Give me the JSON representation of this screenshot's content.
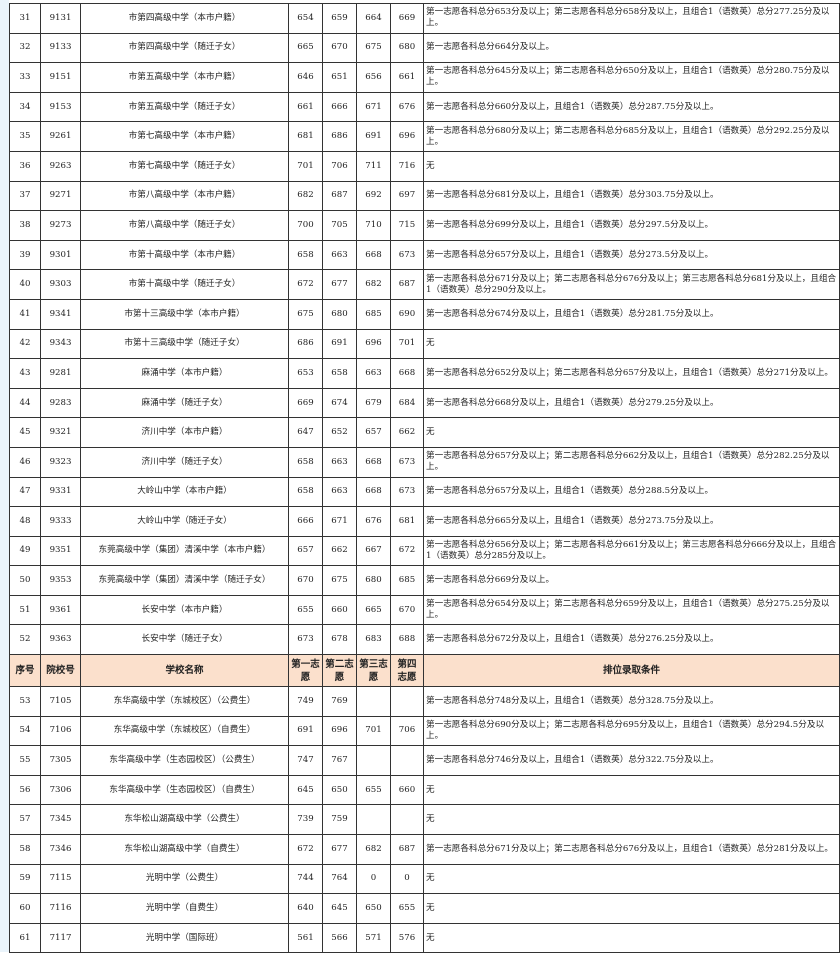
{
  "header": {
    "seq": "序号",
    "code": "院校号",
    "name": "学校名称",
    "v1": "第一志愿",
    "v2": "第二志愿",
    "v3": "第三志愿",
    "v4": "第四志愿",
    "cond": "排位录取条件"
  },
  "colors": {
    "header_bg": "#fbe0cc",
    "border": "#333333"
  },
  "rows_a": [
    [
      "31",
      "9131",
      "市第四高级中学（本市户籍）",
      "654",
      "659",
      "664",
      "669",
      "第一志愿各科总分653分及以上；第二志愿各科总分658分及以上，且组合1（语数英）总分277.25分及以上。"
    ],
    [
      "32",
      "9133",
      "市第四高级中学（随迁子女）",
      "665",
      "670",
      "675",
      "680",
      "第一志愿各科总分664分及以上。"
    ],
    [
      "33",
      "9151",
      "市第五高级中学（本市户籍）",
      "646",
      "651",
      "656",
      "661",
      "第一志愿各科总分645分及以上；第二志愿各科总分650分及以上，且组合1（语数英）总分280.75分及以上。"
    ],
    [
      "34",
      "9153",
      "市第五高级中学（随迁子女）",
      "661",
      "666",
      "671",
      "676",
      "第一志愿各科总分660分及以上，且组合1（语数英）总分287.75分及以上。"
    ],
    [
      "35",
      "9261",
      "市第七高级中学（本市户籍）",
      "681",
      "686",
      "691",
      "696",
      "第一志愿各科总分680分及以上；第二志愿各科总分685分及以上，且组合1（语数英）总分292.25分及以上。"
    ],
    [
      "36",
      "9263",
      "市第七高级中学（随迁子女）",
      "701",
      "706",
      "711",
      "716",
      "无"
    ],
    [
      "37",
      "9271",
      "市第八高级中学（本市户籍）",
      "682",
      "687",
      "692",
      "697",
      "第一志愿各科总分681分及以上，且组合1（语数英）总分303.75分及以上。"
    ],
    [
      "38",
      "9273",
      "市第八高级中学（随迁子女）",
      "700",
      "705",
      "710",
      "715",
      "第一志愿各科总分699分及以上，且组合1（语数英）总分297.5分及以上。"
    ],
    [
      "39",
      "9301",
      "市第十高级中学（本市户籍）",
      "658",
      "663",
      "668",
      "673",
      "第一志愿各科总分657分及以上，且组合1（语数英）总分273.5分及以上。"
    ],
    [
      "40",
      "9303",
      "市第十高级中学（随迁子女）",
      "672",
      "677",
      "682",
      "687",
      "第一志愿各科总分671分及以上；第二志愿各科总分676分及以上；第三志愿各科总分681分及以上，且组合1（语数英）总分290分及以上。"
    ],
    [
      "41",
      "9341",
      "市第十三高级中学（本市户籍）",
      "675",
      "680",
      "685",
      "690",
      "第一志愿各科总分674分及以上，且组合1（语数英）总分281.75分及以上。"
    ],
    [
      "42",
      "9343",
      "市第十三高级中学（随迁子女）",
      "686",
      "691",
      "696",
      "701",
      "无"
    ],
    [
      "43",
      "9281",
      "麻涌中学（本市户籍）",
      "653",
      "658",
      "663",
      "668",
      "第一志愿各科总分652分及以上；第二志愿各科总分657分及以上，且组合1（语数英）总分271分及以上。"
    ],
    [
      "44",
      "9283",
      "麻涌中学（随迁子女）",
      "669",
      "674",
      "679",
      "684",
      "第一志愿各科总分668分及以上，且组合1（语数英）总分279.25分及以上。"
    ],
    [
      "45",
      "9321",
      "济川中学（本市户籍）",
      "647",
      "652",
      "657",
      "662",
      "无"
    ],
    [
      "46",
      "9323",
      "济川中学（随迁子女）",
      "658",
      "663",
      "668",
      "673",
      "第一志愿各科总分657分及以上；第二志愿各科总分662分及以上，且组合1（语数英）总分282.25分及以上。"
    ],
    [
      "47",
      "9331",
      "大岭山中学（本市户籍）",
      "658",
      "663",
      "668",
      "673",
      "第一志愿各科总分657分及以上，且组合1（语数英）总分288.5分及以上。"
    ],
    [
      "48",
      "9333",
      "大岭山中学（随迁子女）",
      "666",
      "671",
      "676",
      "681",
      "第一志愿各科总分665分及以上，且组合1（语数英）总分273.75分及以上。"
    ],
    [
      "49",
      "9351",
      "东莞高级中学（集团）清溪中学（本市户籍）",
      "657",
      "662",
      "667",
      "672",
      "第一志愿各科总分656分及以上；第二志愿各科总分661分及以上；第三志愿各科总分666分及以上，且组合1（语数英）总分285分及以上。"
    ],
    [
      "50",
      "9353",
      "东莞高级中学（集团）清溪中学（随迁子女）",
      "670",
      "675",
      "680",
      "685",
      "第一志愿各科总分669分及以上。"
    ],
    [
      "51",
      "9361",
      "长安中学（本市户籍）",
      "655",
      "660",
      "665",
      "670",
      "第一志愿各科总分654分及以上；第二志愿各科总分659分及以上，且组合1（语数英）总分275.25分及以上。"
    ],
    [
      "52",
      "9363",
      "长安中学（随迁子女）",
      "673",
      "678",
      "683",
      "688",
      "第一志愿各科总分672分及以上，且组合1（语数英）总分276.25分及以上。"
    ]
  ],
  "rows_b": [
    [
      "53",
      "7105",
      "东华高级中学（东城校区）（公费生）",
      "749",
      "769",
      "",
      "",
      "第一志愿各科总分748分及以上，且组合1（语数英）总分328.75分及以上。"
    ],
    [
      "54",
      "7106",
      "东华高级中学（东城校区）（自费生）",
      "691",
      "696",
      "701",
      "706",
      "第一志愿各科总分690分及以上；第二志愿各科总分695分及以上，且组合1（语数英）总分294.5分及以上。"
    ],
    [
      "55",
      "7305",
      "东华高级中学（生态园校区）（公费生）",
      "747",
      "767",
      "",
      "",
      "第一志愿各科总分746分及以上，且组合1（语数英）总分322.75分及以上。"
    ],
    [
      "56",
      "7306",
      "东华高级中学（生态园校区）（自费生）",
      "645",
      "650",
      "655",
      "660",
      "无"
    ],
    [
      "57",
      "7345",
      "东华松山湖高级中学（公费生）",
      "739",
      "759",
      "",
      "",
      "无"
    ],
    [
      "58",
      "7346",
      "东华松山湖高级中学（自费生）",
      "672",
      "677",
      "682",
      "687",
      "第一志愿各科总分671分及以上；第二志愿各科总分676分及以上，且组合1（语数英）总分281分及以上。"
    ],
    [
      "59",
      "7115",
      "光明中学（公费生）",
      "744",
      "764",
      "0",
      "0",
      "无"
    ],
    [
      "60",
      "7116",
      "光明中学（自费生）",
      "640",
      "645",
      "650",
      "655",
      "无"
    ],
    [
      "61",
      "7117",
      "光明中学（国际班）",
      "561",
      "566",
      "571",
      "576",
      "无"
    ]
  ]
}
